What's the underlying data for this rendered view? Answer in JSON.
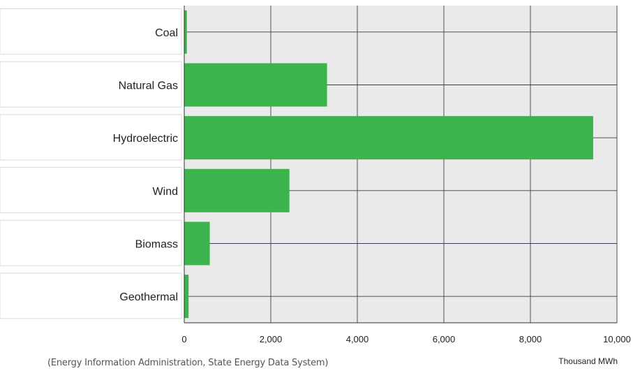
{
  "chart_data": {
    "type": "bar",
    "orientation": "horizontal",
    "categories": [
      "Coal",
      "Natural Gas",
      "Hydroelectric",
      "Wind",
      "Biomass",
      "Geothermal"
    ],
    "values": [
      60,
      3300,
      9450,
      2430,
      590,
      100
    ],
    "xlim": [
      0,
      10000
    ],
    "x_ticks": [
      "0",
      "2,000",
      "4,000",
      "6,000",
      "8,000",
      "10,000"
    ],
    "xlabel": "Thousand MWh",
    "grid": true,
    "colors": {
      "bar": "#3cb44e",
      "plot_bg": "#eaeaea",
      "grid": "#3c3c4e"
    }
  },
  "source_note": "(Energy Information Administration, State Energy Data System)"
}
